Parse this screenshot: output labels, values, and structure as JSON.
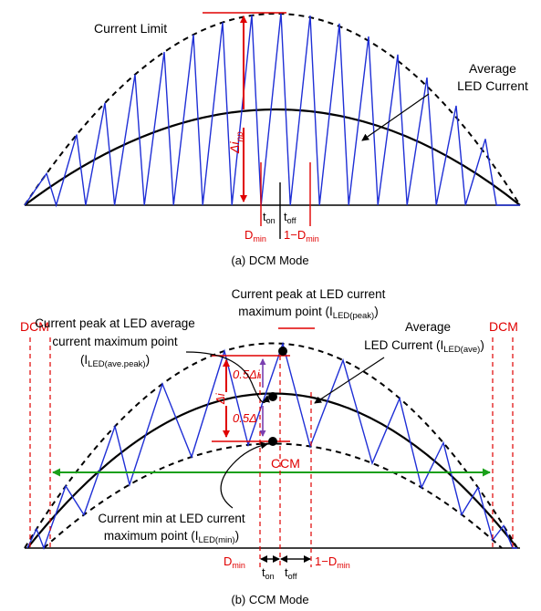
{
  "colors": {
    "waveform": "#1f2fd6",
    "annotation": "#e00000",
    "ccm_range": "#1aa01a",
    "sub_delta": "#7a3fb0",
    "curve": "#000000"
  },
  "dcm": {
    "current_limit": "Current Limit",
    "avg_line1": "Average",
    "avg_line2": "LED Current",
    "delta_main": "Δi",
    "delta_sub": "np",
    "t": "t",
    "on": "on",
    "off": "off",
    "d": "D",
    "min": "min",
    "one_minus_d": "1−D",
    "caption": "(a) DCM Mode"
  },
  "ccm": {
    "peak_line1": "Current peak at LED current",
    "peak_line2": "maximum point (I",
    "peak_sub": "LED(peak)",
    "close": ")",
    "avgpeak_line1": "Current peak at LED average",
    "avgpeak_line2": "current maximum point",
    "avgpeak_open": "(I",
    "avgpeak_sub": "LED(ave.peak)",
    "avg_line1": "Average",
    "avg_line2": "LED Current (I",
    "avg_sub": "LED(ave)",
    "min_line1": "Current min at LED current",
    "min_line2": "maximum point (I",
    "min_sub": "LED(min)",
    "half_delta": "0.5Δi",
    "half_delta_short": "0.5Δ",
    "delta_i": "Δi",
    "dcm_left": "DCM",
    "dcm_right": "DCM",
    "ccm": "CCM",
    "t": "t",
    "on": "on",
    "off": "off",
    "d": "D",
    "min": "min",
    "one_minus_d": "1−D",
    "caption": "(b) CCM Mode"
  }
}
